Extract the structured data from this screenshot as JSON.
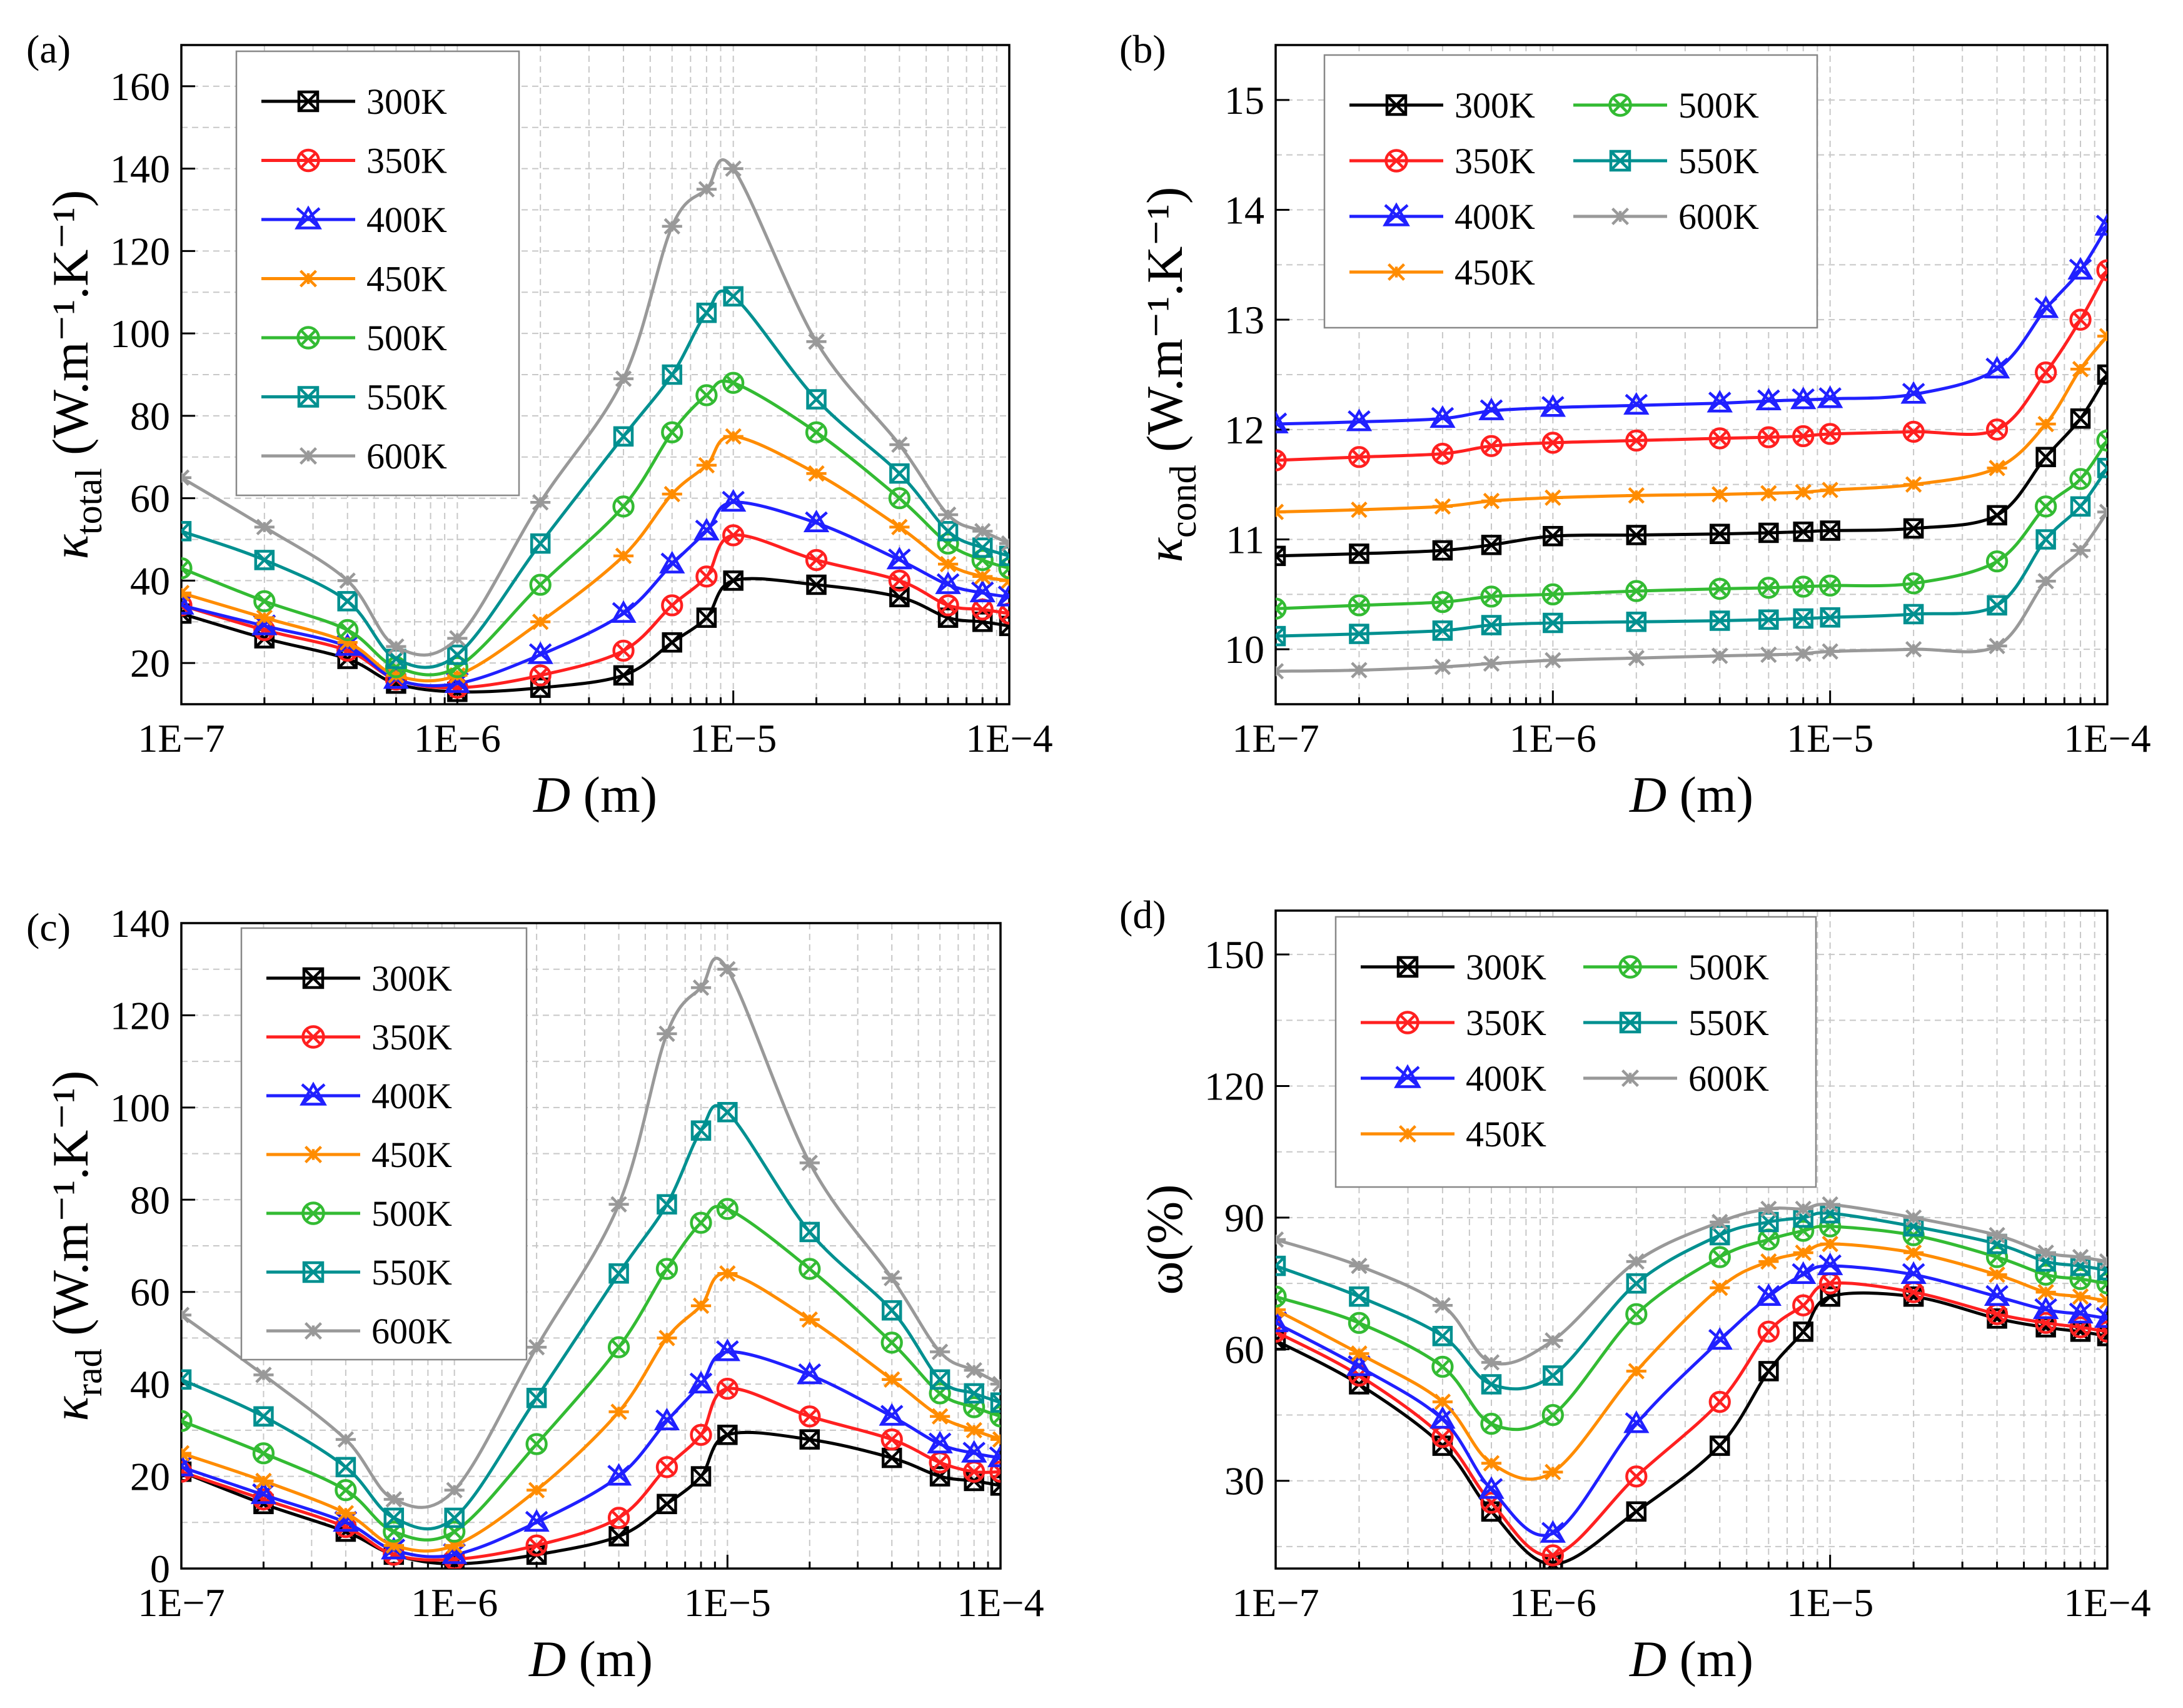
{
  "figure": {
    "panels": [
      "(a)",
      "(b)",
      "(c)",
      "(d)"
    ],
    "x_axis_label": "D",
    "x_axis_unit": "(m)",
    "x_tick_labels": [
      "1E−7",
      "1E−6",
      "1E−5",
      "1E−4"
    ]
  },
  "chart_data": [
    {
      "panel": "(a)",
      "type": "line",
      "ylabel_symbol": "κ",
      "ylabel_sub": "total",
      "ylabel_unit": "(W.m⁻¹.K⁻¹)",
      "xscale": "log",
      "xlim": [
        1e-07,
        0.0001
      ],
      "ylim": [
        10,
        170
      ],
      "yticks": [
        20,
        40,
        60,
        80,
        100,
        120,
        140,
        160
      ],
      "legend": {
        "placement": "top-left",
        "columns": 1
      },
      "x": [
        1e-07,
        2e-07,
        4e-07,
        6e-07,
        1e-06,
        2e-06,
        4e-06,
        6e-06,
        8e-06,
        1e-05,
        2e-05,
        4e-05,
        6e-05,
        8e-05,
        0.0001
      ],
      "series": [
        {
          "name": "300K",
          "color": "#000000",
          "marker": "square-x",
          "values": [
            32,
            26,
            21,
            15,
            13,
            14,
            17,
            25,
            31,
            40,
            39,
            36,
            31,
            30,
            29
          ]
        },
        {
          "name": "350K",
          "color": "#ff2020",
          "marker": "circle-x",
          "values": [
            34,
            28,
            23,
            16,
            14,
            17,
            23,
            34,
            41,
            51,
            45,
            40,
            34,
            33,
            32
          ]
        },
        {
          "name": "400K",
          "color": "#2020ff",
          "marker": "triangle-x",
          "values": [
            34,
            29,
            24,
            16,
            15,
            22,
            32,
            44,
            52,
            59,
            54,
            45,
            39,
            37,
            36
          ]
        },
        {
          "name": "450K",
          "color": "#ff8c00",
          "marker": "asterisk",
          "values": [
            37,
            31,
            25,
            17,
            17,
            30,
            46,
            61,
            68,
            75,
            66,
            53,
            44,
            41,
            40
          ]
        },
        {
          "name": "500K",
          "color": "#33bb33",
          "marker": "circle-x",
          "values": [
            43,
            35,
            28,
            19,
            19,
            39,
            58,
            76,
            85,
            88,
            76,
            60,
            49,
            45,
            43
          ]
        },
        {
          "name": "550K",
          "color": "#009090",
          "marker": "square-x",
          "values": [
            52,
            45,
            35,
            21,
            22,
            49,
            75,
            90,
            105,
            109,
            84,
            66,
            52,
            48,
            46
          ]
        },
        {
          "name": "600K",
          "color": "#999999",
          "marker": "asterisk",
          "values": [
            65,
            53,
            40,
            24,
            26,
            59,
            89,
            126,
            135,
            140,
            98,
            73,
            56,
            52,
            49
          ]
        }
      ]
    },
    {
      "panel": "(b)",
      "type": "line",
      "ylabel_symbol": "κ",
      "ylabel_sub": "cond",
      "ylabel_unit": "(W.m⁻¹.K⁻¹)",
      "xscale": "log",
      "xlim": [
        1e-07,
        0.0001
      ],
      "ylim": [
        9.5,
        15.5
      ],
      "yticks": [
        10,
        11,
        12,
        13,
        14,
        15
      ],
      "legend": {
        "placement": "top-left",
        "columns": 2
      },
      "x": [
        1e-07,
        2e-07,
        4e-07,
        6e-07,
        1e-06,
        2e-06,
        4e-06,
        6e-06,
        8e-06,
        1e-05,
        2e-05,
        4e-05,
        6e-05,
        8e-05,
        0.0001
      ],
      "series": [
        {
          "name": "300K",
          "color": "#000000",
          "marker": "square-x",
          "values": [
            10.85,
            10.87,
            10.9,
            10.95,
            11.03,
            11.04,
            11.05,
            11.06,
            11.07,
            11.08,
            11.1,
            11.22,
            11.75,
            12.1,
            12.5
          ]
        },
        {
          "name": "350K",
          "color": "#ff2020",
          "marker": "circle-x",
          "values": [
            11.72,
            11.75,
            11.78,
            11.85,
            11.88,
            11.9,
            11.92,
            11.93,
            11.94,
            11.96,
            11.98,
            12.0,
            12.52,
            13.0,
            13.45
          ]
        },
        {
          "name": "400K",
          "color": "#2020ff",
          "marker": "triangle-x",
          "values": [
            12.05,
            12.07,
            12.1,
            12.17,
            12.2,
            12.22,
            12.24,
            12.26,
            12.27,
            12.28,
            12.32,
            12.55,
            13.1,
            13.45,
            13.85
          ]
        },
        {
          "name": "450K",
          "color": "#ff8c00",
          "marker": "asterisk",
          "values": [
            11.25,
            11.27,
            11.3,
            11.35,
            11.38,
            11.4,
            11.41,
            11.42,
            11.43,
            11.45,
            11.5,
            11.65,
            12.05,
            12.55,
            12.85
          ]
        },
        {
          "name": "500K",
          "color": "#33bb33",
          "marker": "circle-x",
          "values": [
            10.37,
            10.4,
            10.43,
            10.48,
            10.5,
            10.53,
            10.55,
            10.56,
            10.57,
            10.58,
            10.6,
            10.8,
            11.3,
            11.55,
            11.9
          ]
        },
        {
          "name": "550K",
          "color": "#009090",
          "marker": "square-x",
          "values": [
            10.12,
            10.14,
            10.17,
            10.22,
            10.24,
            10.25,
            10.26,
            10.27,
            10.28,
            10.29,
            10.32,
            10.4,
            11.0,
            11.3,
            11.65
          ]
        },
        {
          "name": "600K",
          "color": "#999999",
          "marker": "asterisk",
          "values": [
            9.8,
            9.81,
            9.84,
            9.87,
            9.9,
            9.92,
            9.94,
            9.95,
            9.96,
            9.98,
            10.0,
            10.03,
            10.62,
            10.9,
            11.25
          ]
        }
      ]
    },
    {
      "panel": "(c)",
      "type": "line",
      "ylabel_symbol": "κ",
      "ylabel_sub": "rad",
      "ylabel_unit": "(W.m⁻¹.K⁻¹)",
      "xscale": "log",
      "xlim": [
        1e-07,
        0.0001
      ],
      "ylim": [
        0,
        140
      ],
      "yticks": [
        0,
        20,
        40,
        60,
        80,
        100,
        120,
        140
      ],
      "legend": {
        "placement": "top-left",
        "columns": 1
      },
      "x": [
        1e-07,
        2e-07,
        4e-07,
        6e-07,
        1e-06,
        2e-06,
        4e-06,
        6e-06,
        8e-06,
        1e-05,
        2e-05,
        4e-05,
        6e-05,
        8e-05,
        0.0001
      ],
      "series": [
        {
          "name": "300K",
          "color": "#000000",
          "marker": "square-x",
          "values": [
            21,
            14,
            8,
            3,
            1,
            3,
            7,
            14,
            20,
            29,
            28,
            24,
            20,
            19,
            18
          ]
        },
        {
          "name": "350K",
          "color": "#ff2020",
          "marker": "circle-x",
          "values": [
            21,
            15,
            9,
            3,
            2,
            5,
            11,
            22,
            29,
            39,
            33,
            28,
            23,
            21,
            21
          ]
        },
        {
          "name": "400K",
          "color": "#2020ff",
          "marker": "triangle-x",
          "values": [
            22,
            16,
            10,
            4,
            3,
            10,
            20,
            32,
            40,
            47,
            42,
            33,
            27,
            25,
            24
          ]
        },
        {
          "name": "450K",
          "color": "#ff8c00",
          "marker": "asterisk",
          "values": [
            25,
            19,
            12,
            5,
            5,
            17,
            34,
            50,
            57,
            64,
            54,
            41,
            33,
            30,
            28
          ]
        },
        {
          "name": "500K",
          "color": "#33bb33",
          "marker": "circle-x",
          "values": [
            32,
            25,
            17,
            8,
            8,
            27,
            48,
            65,
            75,
            78,
            65,
            49,
            38,
            35,
            33
          ]
        },
        {
          "name": "550K",
          "color": "#009090",
          "marker": "square-x",
          "values": [
            41,
            33,
            22,
            11,
            11,
            37,
            64,
            79,
            95,
            99,
            73,
            56,
            41,
            38,
            36
          ]
        },
        {
          "name": "600K",
          "color": "#999999",
          "marker": "asterisk",
          "values": [
            55,
            42,
            28,
            15,
            17,
            48,
            79,
            116,
            126,
            130,
            88,
            63,
            47,
            43,
            40
          ]
        }
      ]
    },
    {
      "panel": "(d)",
      "type": "line",
      "ylabel": "ω(%)",
      "xscale": "log",
      "xlim": [
        1e-07,
        0.0001
      ],
      "ylim": [
        10,
        160
      ],
      "yticks": [
        30,
        60,
        90,
        120,
        150
      ],
      "legend": {
        "placement": "top-left",
        "columns": 2
      },
      "x": [
        1e-07,
        2e-07,
        4e-07,
        6e-07,
        1e-06,
        2e-06,
        4e-06,
        6e-06,
        8e-06,
        1e-05,
        2e-05,
        4e-05,
        6e-05,
        8e-05,
        0.0001
      ],
      "series": [
        {
          "name": "300K",
          "color": "#000000",
          "marker": "square-x",
          "values": [
            62,
            52,
            38,
            23,
            11,
            23,
            38,
            55,
            64,
            72,
            72,
            67,
            65,
            64,
            63
          ]
        },
        {
          "name": "350K",
          "color": "#ff2020",
          "marker": "circle-x",
          "values": [
            64,
            54,
            40,
            25,
            13,
            31,
            48,
            64,
            70,
            75,
            73,
            68,
            66,
            65,
            64
          ]
        },
        {
          "name": "400K",
          "color": "#2020ff",
          "marker": "triangle-x",
          "values": [
            66,
            56,
            44,
            28,
            18,
            43,
            62,
            72,
            77,
            79,
            77,
            72,
            69,
            68,
            67
          ]
        },
        {
          "name": "450K",
          "color": "#ff8c00",
          "marker": "asterisk",
          "values": [
            69,
            59,
            48,
            34,
            32,
            55,
            74,
            80,
            82,
            84,
            82,
            77,
            73,
            72,
            71
          ]
        },
        {
          "name": "500K",
          "color": "#33bb33",
          "marker": "circle-x",
          "values": [
            72,
            66,
            56,
            43,
            45,
            68,
            81,
            85,
            87,
            88,
            86,
            81,
            77,
            76,
            75
          ]
        },
        {
          "name": "550K",
          "color": "#009090",
          "marker": "square-x",
          "values": [
            79,
            72,
            63,
            52,
            54,
            75,
            86,
            89,
            90,
            91,
            88,
            84,
            80,
            79,
            78
          ]
        },
        {
          "name": "600K",
          "color": "#999999",
          "marker": "asterisk",
          "values": [
            85,
            79,
            70,
            57,
            62,
            80,
            89,
            92,
            92,
            93,
            90,
            86,
            82,
            81,
            80
          ]
        }
      ]
    }
  ]
}
